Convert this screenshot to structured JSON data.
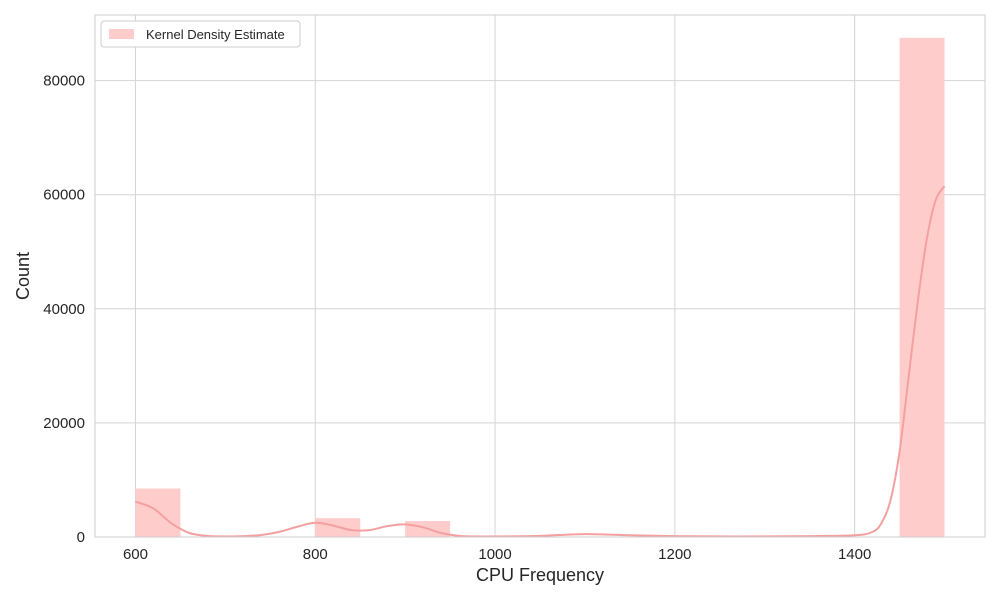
{
  "chart_data": {
    "type": "bar",
    "subtype": "histogram-with-kde",
    "title": "",
    "xlabel": "CPU Frequency",
    "ylabel": "Count",
    "xlim": [
      555,
      1545
    ],
    "ylim": [
      0,
      91500
    ],
    "xticks": [
      600,
      800,
      1000,
      1200,
      1400
    ],
    "yticks": [
      0,
      20000,
      40000,
      60000,
      80000
    ],
    "grid": true,
    "legend": {
      "placement": "top-left",
      "entries": [
        "Kernel Density Estimate"
      ]
    },
    "colors": {
      "bar": "#ffcccc",
      "kde": "#f4a0a0",
      "grid": "#d4d4d4",
      "frame": "#cccccc"
    },
    "bins": [
      {
        "x0": 600,
        "x1": 650,
        "count": 8500
      },
      {
        "x0": 650,
        "x1": 700,
        "count": 0
      },
      {
        "x0": 700,
        "x1": 750,
        "count": 0
      },
      {
        "x0": 750,
        "x1": 800,
        "count": 0
      },
      {
        "x0": 800,
        "x1": 850,
        "count": 3300
      },
      {
        "x0": 850,
        "x1": 900,
        "count": 0
      },
      {
        "x0": 900,
        "x1": 950,
        "count": 2800
      },
      {
        "x0": 950,
        "x1": 1000,
        "count": 0
      },
      {
        "x0": 1000,
        "x1": 1050,
        "count": 0
      },
      {
        "x0": 1050,
        "x1": 1100,
        "count": 0
      },
      {
        "x0": 1100,
        "x1": 1150,
        "count": 0
      },
      {
        "x0": 1150,
        "x1": 1200,
        "count": 0
      },
      {
        "x0": 1200,
        "x1": 1250,
        "count": 0
      },
      {
        "x0": 1250,
        "x1": 1300,
        "count": 0
      },
      {
        "x0": 1300,
        "x1": 1350,
        "count": 0
      },
      {
        "x0": 1350,
        "x1": 1400,
        "count": 0
      },
      {
        "x0": 1400,
        "x1": 1450,
        "count": 0
      },
      {
        "x0": 1450,
        "x1": 1500,
        "count": 87500
      }
    ],
    "kde": {
      "x": [
        600,
        620,
        640,
        660,
        680,
        700,
        720,
        740,
        760,
        780,
        800,
        820,
        840,
        860,
        880,
        900,
        920,
        940,
        960,
        980,
        1000,
        1050,
        1100,
        1150,
        1200,
        1250,
        1300,
        1350,
        1400,
        1420,
        1430,
        1440,
        1450,
        1460,
        1470,
        1480,
        1490,
        1500
      ],
      "y": [
        6200,
        5000,
        2400,
        700,
        200,
        100,
        150,
        350,
        900,
        1800,
        2500,
        2000,
        1200,
        1200,
        1900,
        2200,
        1700,
        700,
        200,
        100,
        100,
        200,
        500,
        300,
        150,
        100,
        100,
        150,
        300,
        900,
        2500,
        6500,
        15000,
        28000,
        41000,
        52000,
        59000,
        61500
      ]
    }
  }
}
